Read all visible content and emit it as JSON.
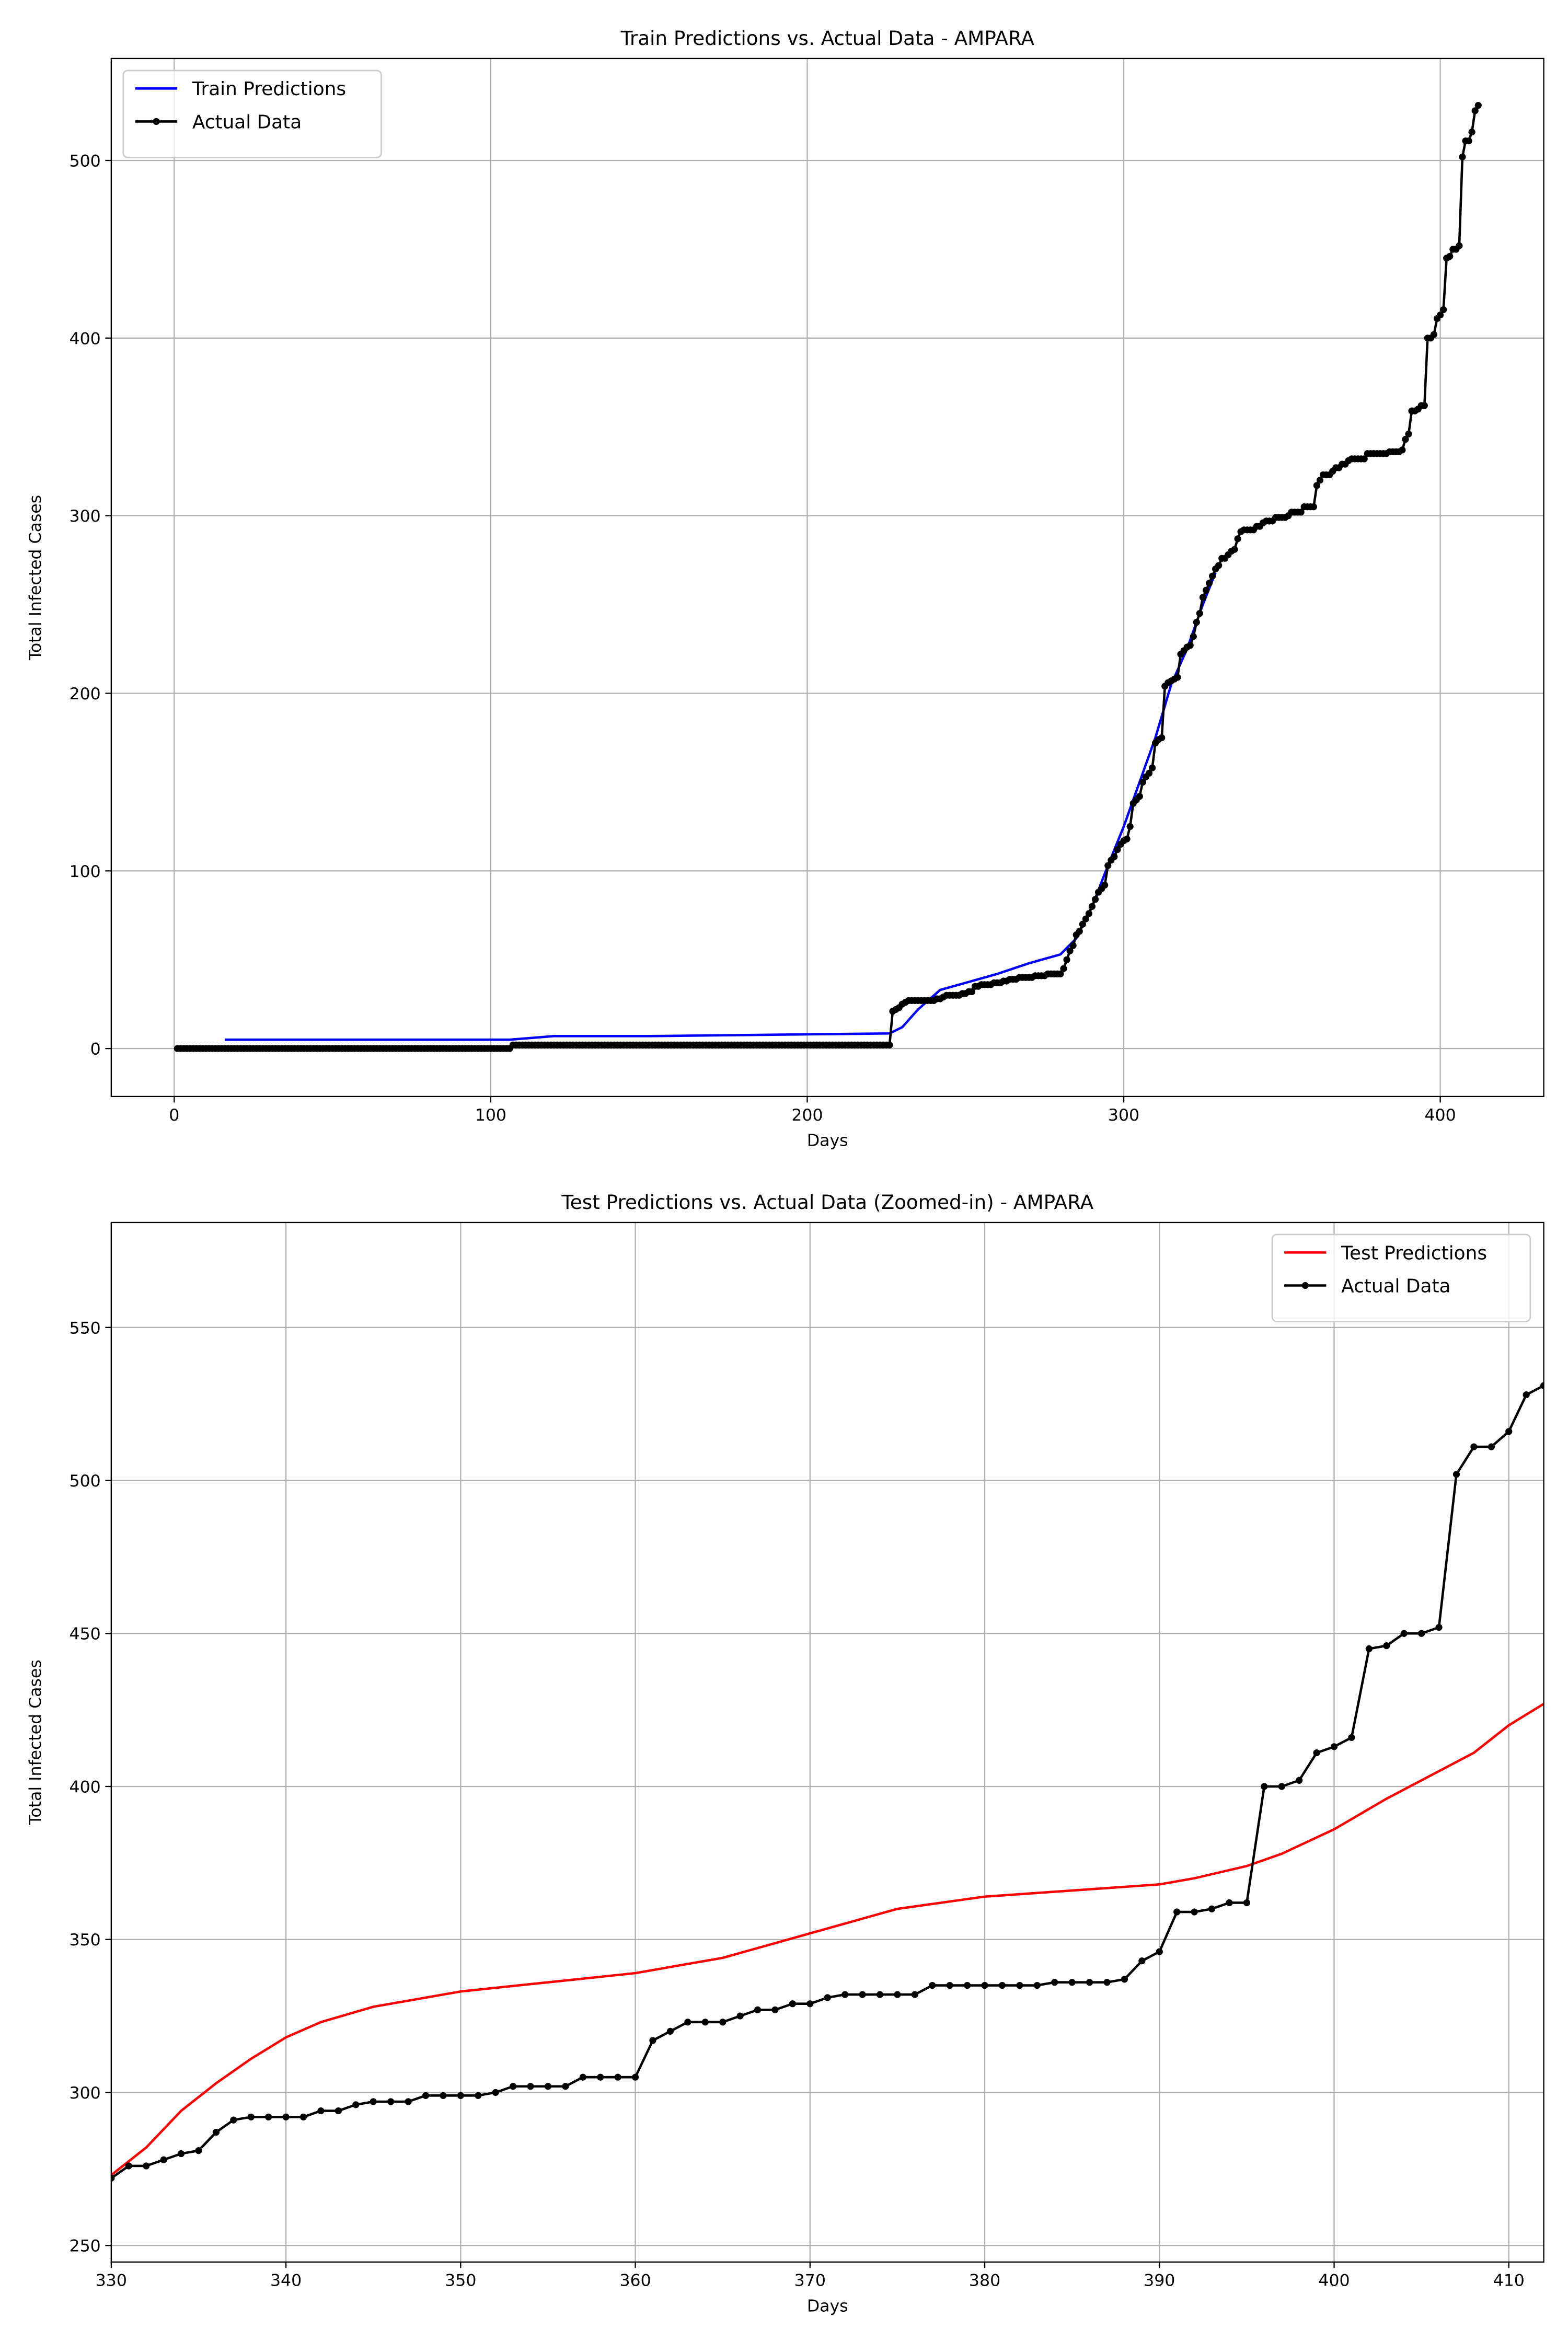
{
  "chart_data": [
    {
      "type": "line",
      "title": "Train Predictions vs. Actual Data - AMPARA",
      "xlabel": "Days",
      "ylabel": "Total Infected Cases",
      "xlim": [
        -19.9,
        432.7
      ],
      "ylim": [
        -27,
        557.4
      ],
      "xticks": [
        0,
        100,
        200,
        300,
        400
      ],
      "yticks": [
        0,
        100,
        200,
        300,
        400,
        500
      ],
      "grid": true,
      "legend": "upper left",
      "series": [
        {
          "name": "Train Predictions",
          "color": "#0000ff",
          "marker": false,
          "x": [
            16,
            50,
            106,
            120,
            150,
            200,
            226,
            230,
            235,
            242,
            250,
            260,
            270,
            280,
            285,
            290,
            295,
            300,
            305,
            310,
            315,
            320,
            325,
            329
          ],
          "values": [
            5,
            5,
            5,
            7,
            7,
            8,
            8.5,
            12,
            22,
            33,
            37,
            42,
            48,
            53,
            62,
            80,
            103,
            125,
            150,
            175,
            205,
            225,
            250,
            268
          ]
        },
        {
          "name": "Actual Data",
          "color": "#000000",
          "marker": true,
          "x": [
            1,
            2,
            3,
            4,
            5,
            6,
            7,
            8,
            9,
            10,
            11,
            12,
            13,
            14,
            15,
            16,
            17,
            18,
            19,
            20,
            21,
            22,
            23,
            24,
            25,
            26,
            27,
            28,
            29,
            30,
            31,
            32,
            33,
            34,
            35,
            36,
            37,
            38,
            39,
            40,
            41,
            42,
            43,
            44,
            45,
            46,
            47,
            48,
            49,
            50,
            51,
            52,
            53,
            54,
            55,
            56,
            57,
            58,
            59,
            60,
            61,
            62,
            63,
            64,
            65,
            66,
            67,
            68,
            69,
            70,
            71,
            72,
            73,
            74,
            75,
            76,
            77,
            78,
            79,
            80,
            81,
            82,
            83,
            84,
            85,
            86,
            87,
            88,
            89,
            90,
            91,
            92,
            93,
            94,
            95,
            96,
            97,
            98,
            99,
            100,
            101,
            102,
            103,
            104,
            105,
            106,
            107,
            108,
            109,
            110,
            111,
            112,
            113,
            114,
            115,
            116,
            117,
            118,
            119,
            120,
            121,
            122,
            123,
            124,
            125,
            126,
            127,
            128,
            129,
            130,
            131,
            132,
            133,
            134,
            135,
            136,
            137,
            138,
            139,
            140,
            141,
            142,
            143,
            144,
            145,
            146,
            147,
            148,
            149,
            150,
            151,
            152,
            153,
            154,
            155,
            156,
            157,
            158,
            159,
            160,
            161,
            162,
            163,
            164,
            165,
            166,
            167,
            168,
            169,
            170,
            171,
            172,
            173,
            174,
            175,
            176,
            177,
            178,
            179,
            180,
            181,
            182,
            183,
            184,
            185,
            186,
            187,
            188,
            189,
            190,
            191,
            192,
            193,
            194,
            195,
            196,
            197,
            198,
            199,
            200,
            201,
            202,
            203,
            204,
            205,
            206,
            207,
            208,
            209,
            210,
            211,
            212,
            213,
            214,
            215,
            216,
            217,
            218,
            219,
            220,
            221,
            222,
            223,
            224,
            225,
            226,
            227,
            228,
            229,
            230,
            231,
            232,
            233,
            234,
            235,
            236,
            237,
            238,
            239,
            240,
            241,
            242,
            243,
            244,
            245,
            246,
            247,
            248,
            249,
            250,
            251,
            252,
            253,
            254,
            255,
            256,
            257,
            258,
            259,
            260,
            261,
            262,
            263,
            264,
            265,
            266,
            267,
            268,
            269,
            270,
            271,
            272,
            273,
            274,
            275,
            276,
            277,
            278,
            279,
            280,
            281,
            282,
            283,
            284,
            285,
            286,
            287,
            288,
            289,
            290,
            291,
            292,
            293,
            294,
            295,
            296,
            297,
            298,
            299,
            300,
            301,
            302,
            303,
            304,
            305,
            306,
            307,
            308,
            309,
            310,
            311,
            312,
            313,
            314,
            315,
            316,
            317,
            318,
            319,
            320,
            321,
            322,
            323,
            324,
            325,
            326,
            327,
            328,
            329,
            330,
            331,
            332,
            333,
            334,
            335,
            336,
            337,
            338,
            339,
            340,
            341,
            342,
            343,
            344,
            345,
            346,
            347,
            348,
            349,
            350,
            351,
            352,
            353,
            354,
            355,
            356,
            357,
            358,
            359,
            360,
            361,
            362,
            363,
            364,
            365,
            366,
            367,
            368,
            369,
            370,
            371,
            372,
            373,
            374,
            375,
            376,
            377,
            378,
            379,
            380,
            381,
            382,
            383,
            384,
            385,
            386,
            387,
            388,
            389,
            390,
            391,
            392,
            393,
            394,
            395,
            396,
            397,
            398,
            399,
            400,
            401,
            402,
            403,
            404,
            405,
            406,
            407,
            408,
            409,
            410,
            411,
            412
          ],
          "values": [
            0,
            0,
            0,
            0,
            0,
            0,
            0,
            0,
            0,
            0,
            0,
            0,
            0,
            0,
            0,
            0,
            0,
            0,
            0,
            0,
            0,
            0,
            0,
            0,
            0,
            0,
            0,
            0,
            0,
            0,
            0,
            0,
            0,
            0,
            0,
            0,
            0,
            0,
            0,
            0,
            0,
            0,
            0,
            0,
            0,
            0,
            0,
            0,
            0,
            0,
            0,
            0,
            0,
            0,
            0,
            0,
            0,
            0,
            0,
            0,
            0,
            0,
            0,
            0,
            0,
            0,
            0,
            0,
            0,
            0,
            0,
            0,
            0,
            0,
            0,
            0,
            0,
            0,
            0,
            0,
            0,
            0,
            0,
            0,
            0,
            0,
            0,
            0,
            0,
            0,
            0,
            0,
            0,
            0,
            0,
            0,
            0,
            0,
            0,
            0,
            0,
            0,
            0,
            0,
            0,
            0,
            2,
            2,
            2,
            2,
            2,
            2,
            2,
            2,
            2,
            2,
            2,
            2,
            2,
            2,
            2,
            2,
            2,
            2,
            2,
            2,
            2,
            2,
            2,
            2,
            2,
            2,
            2,
            2,
            2,
            2,
            2,
            2,
            2,
            2,
            2,
            2,
            2,
            2,
            2,
            2,
            2,
            2,
            2,
            2,
            2,
            2,
            2,
            2,
            2,
            2,
            2,
            2,
            2,
            2,
            2,
            2,
            2,
            2,
            2,
            2,
            2,
            2,
            2,
            2,
            2,
            2,
            2,
            2,
            2,
            2,
            2,
            2,
            2,
            2,
            2,
            2,
            2,
            2,
            2,
            2,
            2,
            2,
            2,
            2,
            2,
            2,
            2,
            2,
            2,
            2,
            2,
            2,
            2,
            2,
            2,
            2,
            2,
            2,
            2,
            2,
            2,
            2,
            2,
            2,
            2,
            2,
            2,
            2,
            2,
            2,
            2,
            2,
            2,
            2,
            2,
            2,
            2,
            2,
            2,
            2,
            21,
            22,
            23,
            25,
            26,
            27,
            27,
            27,
            27,
            27,
            27,
            27,
            27,
            27,
            28,
            28,
            29,
            30,
            30,
            30,
            30,
            30,
            31,
            31,
            32,
            32,
            35,
            35,
            36,
            36,
            36,
            36,
            37,
            37,
            37,
            38,
            38,
            39,
            39,
            39,
            40,
            40,
            40,
            40,
            40,
            41,
            41,
            41,
            41,
            42,
            42,
            42,
            42,
            42,
            45,
            50,
            55,
            58,
            64,
            66,
            70,
            73,
            76,
            80,
            84,
            88,
            90,
            92,
            103,
            106,
            108,
            112,
            115,
            117,
            118,
            125,
            138,
            140,
            142,
            150,
            153,
            155,
            158,
            172,
            174,
            175,
            204,
            206,
            207,
            208,
            209,
            222,
            224,
            226,
            227,
            232,
            240,
            245,
            254,
            258,
            262,
            266,
            270,
            272,
            276,
            276,
            278,
            280,
            281,
            287,
            291,
            292,
            292,
            292,
            292,
            294,
            294,
            296,
            297,
            297,
            297,
            299,
            299,
            299,
            299,
            300,
            302,
            302,
            302,
            302,
            305,
            305,
            305,
            305,
            317,
            320,
            323,
            323,
            323,
            325,
            327,
            327,
            329,
            329,
            331,
            332,
            332,
            332,
            332,
            332,
            335,
            335,
            335,
            335,
            335,
            335,
            335,
            336,
            336,
            336,
            336,
            337,
            343,
            346,
            359,
            359,
            360,
            362,
            362,
            400,
            400,
            402,
            411,
            413,
            416,
            445,
            446,
            450,
            450,
            452,
            502,
            511,
            511,
            516,
            528,
            531
          ]
        }
      ]
    },
    {
      "type": "line",
      "title": "Test Predictions vs. Actual Data (Zoomed-in) - AMPARA",
      "xlabel": "Days",
      "ylabel": "Total Infected Cases",
      "xlim": [
        330,
        412
      ],
      "ylim": [
        244.6,
        584.3
      ],
      "xticks": [
        330,
        340,
        350,
        360,
        370,
        380,
        390,
        400,
        410
      ],
      "yticks": [
        250,
        300,
        350,
        400,
        450,
        500,
        550
      ],
      "grid": true,
      "legend": "upper right",
      "series": [
        {
          "name": "Test Predictions",
          "color": "#ff0000",
          "marker": false,
          "x": [
            330,
            332,
            334,
            336,
            338,
            340,
            342,
            345,
            350,
            355,
            360,
            362,
            365,
            370,
            375,
            380,
            385,
            390,
            392,
            395,
            397,
            400,
            403,
            406,
            408,
            410,
            412
          ],
          "values": [
            273,
            282,
            294,
            303,
            311,
            318,
            323,
            328,
            333,
            336,
            339,
            341,
            344,
            352,
            360,
            364,
            366,
            368,
            370,
            374,
            378,
            386,
            396,
            405,
            411,
            420,
            427
          ]
        },
        {
          "name": "Actual Data",
          "color": "#000000",
          "marker": true,
          "x": [
            330,
            331,
            332,
            333,
            334,
            335,
            336,
            337,
            338,
            339,
            340,
            341,
            342,
            343,
            344,
            345,
            346,
            347,
            348,
            349,
            350,
            351,
            352,
            353,
            354,
            355,
            356,
            357,
            358,
            359,
            360,
            361,
            362,
            363,
            364,
            365,
            366,
            367,
            368,
            369,
            370,
            371,
            372,
            373,
            374,
            375,
            376,
            377,
            378,
            379,
            380,
            381,
            382,
            383,
            384,
            385,
            386,
            387,
            388,
            389,
            390,
            391,
            392,
            393,
            394,
            395,
            396,
            397,
            398,
            399,
            400,
            401,
            402,
            403,
            404,
            405,
            406,
            407,
            408,
            409,
            410,
            411,
            412
          ],
          "values": [
            272,
            276,
            276,
            278,
            280,
            281,
            287,
            291,
            292,
            292,
            292,
            292,
            294,
            294,
            296,
            297,
            297,
            297,
            299,
            299,
            299,
            299,
            300,
            302,
            302,
            302,
            302,
            305,
            305,
            305,
            305,
            317,
            320,
            323,
            323,
            323,
            325,
            327,
            327,
            329,
            329,
            331,
            332,
            332,
            332,
            332,
            332,
            335,
            335,
            335,
            335,
            335,
            335,
            335,
            336,
            336,
            336,
            336,
            337,
            343,
            346,
            359,
            359,
            360,
            362,
            362,
            400,
            400,
            402,
            411,
            413,
            416,
            445,
            446,
            450,
            450,
            452,
            502,
            511,
            511,
            516,
            528,
            531
          ]
        }
      ]
    }
  ]
}
